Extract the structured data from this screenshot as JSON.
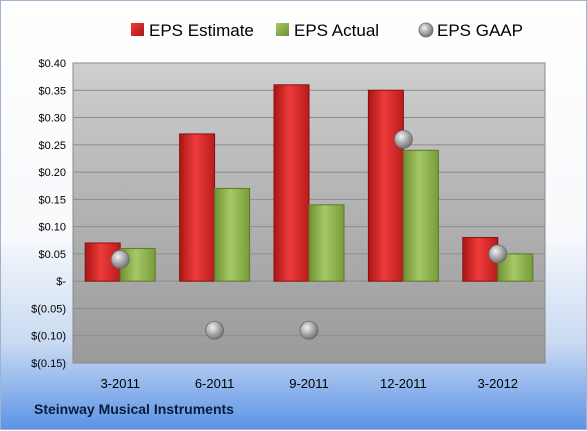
{
  "chart_data": {
    "type": "bar",
    "categories": [
      "3-2011",
      "6-2011",
      "9-2011",
      "12-2011",
      "3-2012"
    ],
    "series": [
      {
        "name": "EPS Estimate",
        "kind": "bar",
        "color": "#d42a2a",
        "values": [
          0.07,
          0.27,
          0.36,
          0.35,
          0.08
        ]
      },
      {
        "name": "EPS Actual",
        "kind": "bar",
        "color": "#8db34a",
        "values": [
          0.06,
          0.17,
          0.14,
          0.24,
          0.05
        ]
      },
      {
        "name": "EPS GAAP",
        "kind": "marker",
        "color": "#9a9a9a",
        "values": [
          0.04,
          -0.09,
          -0.09,
          0.26,
          0.05
        ]
      }
    ],
    "yticks": [
      {
        "value": 0.4,
        "label": "$0.40"
      },
      {
        "value": 0.35,
        "label": "$0.35"
      },
      {
        "value": 0.3,
        "label": "$0.30"
      },
      {
        "value": 0.25,
        "label": "$0.25"
      },
      {
        "value": 0.2,
        "label": "$0.20"
      },
      {
        "value": 0.15,
        "label": "$0.15"
      },
      {
        "value": 0.1,
        "label": "$0.10"
      },
      {
        "value": 0.05,
        "label": "$0.05"
      },
      {
        "value": 0.0,
        "label": "$-"
      },
      {
        "value": -0.05,
        "label": "$(0.05)"
      },
      {
        "value": -0.1,
        "label": "$(0.10)"
      },
      {
        "value": -0.15,
        "label": "$(0.15)"
      }
    ],
    "ylim": [
      -0.15,
      0.4
    ],
    "grid": true,
    "legend_position": "top"
  },
  "footer": {
    "title": "Steinway Musical Instruments"
  }
}
